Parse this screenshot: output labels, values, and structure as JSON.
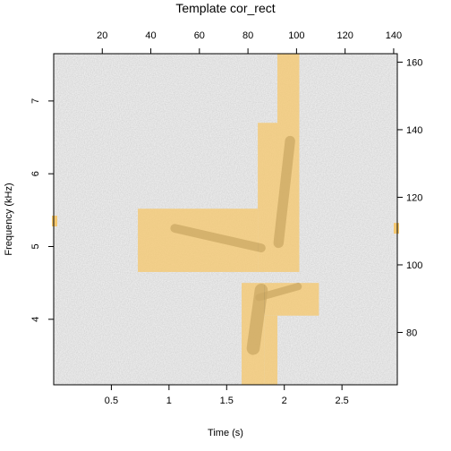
{
  "chart_data": {
    "type": "heatmap",
    "title": "Template cor_rect",
    "xlabel": "Time (s)",
    "ylabel": "Frequency (kHz)",
    "bottom_axis": {
      "range": [
        0.0,
        2.98
      ],
      "ticks": [
        0.5,
        1,
        1.5,
        2,
        2.5
      ],
      "tick_labels": [
        "0.5",
        "1",
        "1.5",
        "2",
        "2.5"
      ]
    },
    "left_axis": {
      "range": [
        3.1,
        7.65
      ],
      "ticks": [
        4,
        5,
        6,
        7
      ],
      "tick_labels": [
        "4",
        "5",
        "6",
        "7"
      ]
    },
    "top_axis": {
      "range": [
        0,
        141.5
      ],
      "ticks": [
        20,
        40,
        60,
        80,
        100,
        120,
        140
      ],
      "tick_labels": [
        "20",
        "40",
        "60",
        "80",
        "100",
        "120",
        "140"
      ]
    },
    "right_axis": {
      "range": [
        64.5,
        162.5
      ],
      "ticks": [
        80,
        100,
        120,
        140,
        160
      ],
      "tick_labels": [
        "80",
        "100",
        "120",
        "140",
        "160"
      ]
    },
    "spectrogram_color": "#c8c8c8",
    "template_color": "#f5c870",
    "template_cells": [
      {
        "t": [
          0.73,
          1.77
        ],
        "f": [
          4.65,
          5.52
        ]
      },
      {
        "t": [
          1.77,
          1.94
        ],
        "f": [
          4.65,
          6.7
        ]
      },
      {
        "t": [
          1.94,
          2.13
        ],
        "f": [
          4.65,
          7.65
        ]
      },
      {
        "t": [
          1.63,
          1.83
        ],
        "f": [
          3.1,
          4.5
        ]
      },
      {
        "t": [
          1.83,
          2.3
        ],
        "f": [
          4.05,
          4.5
        ]
      },
      {
        "t": [
          1.83,
          1.94
        ],
        "f": [
          3.1,
          4.05
        ]
      }
    ],
    "edge_markers": [
      {
        "side": "left",
        "f": 5.35
      },
      {
        "side": "right",
        "f": 5.25
      }
    ],
    "call_segments": [
      {
        "t": [
          1.05,
          1.8
        ],
        "f": [
          5.25,
          4.98
        ],
        "w": 0.12
      },
      {
        "t": [
          1.73,
          1.8
        ],
        "f": [
          3.6,
          4.4
        ],
        "w": 0.18
      },
      {
        "t": [
          1.78,
          2.12
        ],
        "f": [
          4.3,
          4.45
        ],
        "w": 0.1
      },
      {
        "t": [
          1.95,
          2.05
        ],
        "f": [
          5.05,
          6.45
        ],
        "w": 0.14
      }
    ],
    "grid": false,
    "legend": "none"
  }
}
